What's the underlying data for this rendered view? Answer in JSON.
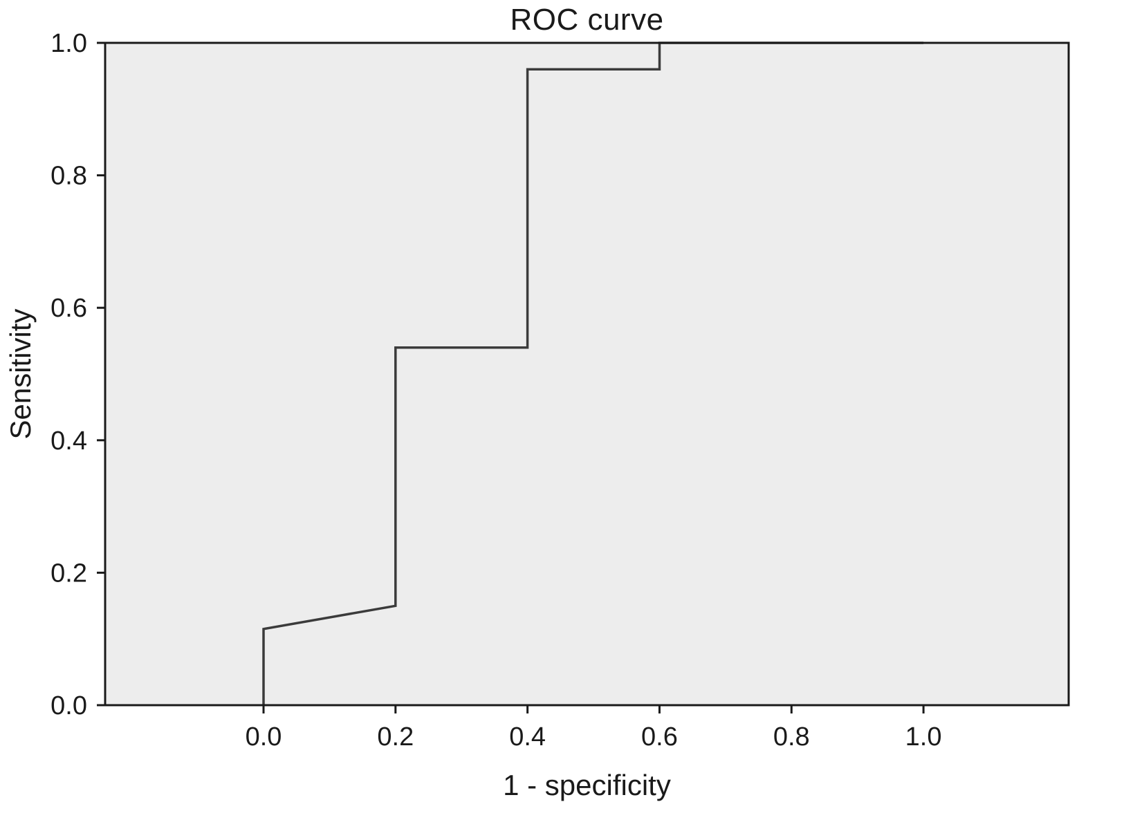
{
  "chart_data": {
    "type": "line",
    "title": "ROC curve",
    "xlabel": "1 - specificity",
    "ylabel": "Sensitivity",
    "series": [
      {
        "name": "ROC curve",
        "points": [
          {
            "x": 0.0,
            "y": 0.0
          },
          {
            "x": 0.0,
            "y": 0.115
          },
          {
            "x": 0.2,
            "y": 0.15
          },
          {
            "x": 0.2,
            "y": 0.54
          },
          {
            "x": 0.4,
            "y": 0.54
          },
          {
            "x": 0.4,
            "y": 0.96
          },
          {
            "x": 0.6,
            "y": 0.96
          },
          {
            "x": 0.6,
            "y": 1.0
          },
          {
            "x": 1.0,
            "y": 1.0
          }
        ],
        "color": "#3b3b3b",
        "line_width": 3.5
      }
    ],
    "xticks": {
      "values": [
        0.0,
        0.2,
        0.4,
        0.6,
        0.8,
        1.0
      ],
      "labels": [
        "0.0",
        "0.2",
        "0.4",
        "0.6",
        "0.8",
        "1.0"
      ]
    },
    "yticks": {
      "values": [
        0.0,
        0.2,
        0.4,
        0.6,
        0.8,
        1.0
      ],
      "labels": [
        "0.0",
        "0.2",
        "0.4",
        "0.6",
        "0.8",
        "1.0"
      ]
    },
    "xlim": [
      -0.24,
      1.22
    ],
    "ylim": [
      0.0,
      1.0
    ],
    "grid": false,
    "legend": false,
    "plot_background": "#ededed",
    "axis_color": "#1a1a1a",
    "tick_label_color": "#1a1a1a"
  }
}
